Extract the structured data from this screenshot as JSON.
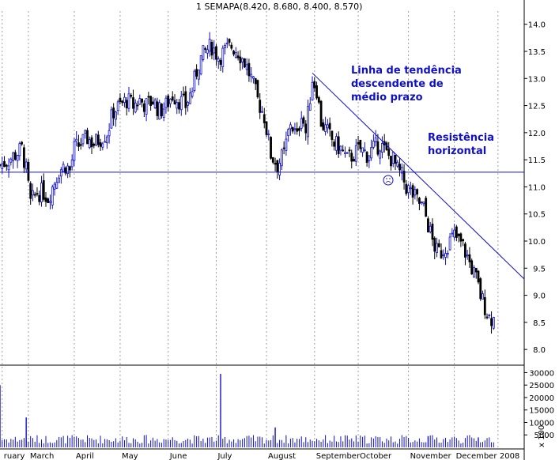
{
  "chart_data": {
    "type": "candlestick",
    "title": "1 SEMAPA(8.420, 8.680, 8.400, 8.570)",
    "price_axis": {
      "ylim": [
        7.9,
        14.2
      ],
      "ticks": [
        "14.0",
        "13.5",
        "13.0",
        "12.5",
        "12.0",
        "11.5",
        "11.0",
        "10.5",
        "10.0",
        "9.5",
        "9.0",
        "8.5",
        "8.0"
      ]
    },
    "volume_axis": {
      "ylim": [
        0,
        33000
      ],
      "ticks": [
        "30000",
        "25000",
        "20000",
        "15000",
        "10000",
        "5000"
      ],
      "multiplier_label": "x 100"
    },
    "x_labels": [
      {
        "label": "ruary",
        "day": -3
      },
      {
        "label": "March",
        "day": 9
      },
      {
        "label": "April",
        "day": 30
      },
      {
        "label": "May",
        "day": 51
      },
      {
        "label": "June",
        "day": 73
      },
      {
        "label": "July",
        "day": 95
      },
      {
        "label": "August",
        "day": 118
      },
      {
        "label": "September",
        "day": 140
      },
      {
        "label": "October",
        "day": 160
      },
      {
        "label": "November",
        "day": 183
      },
      {
        "label": "December",
        "day": 204
      },
      {
        "label": "2008",
        "day": 224
      }
    ],
    "x_range": [
      -4,
      236
    ],
    "gridlines": "vertical dotted at month starts",
    "series": [
      {
        "name": "close",
        "points": [
          [
            -4,
            11.4
          ],
          [
            0,
            11.5
          ],
          [
            3,
            11.6
          ],
          [
            6,
            11.7
          ],
          [
            8,
            11.3
          ],
          [
            10,
            10.7
          ],
          [
            13,
            10.9
          ],
          [
            16,
            10.9
          ],
          [
            18,
            10.8
          ],
          [
            20,
            11.0
          ],
          [
            23,
            11.3
          ],
          [
            26,
            11.4
          ],
          [
            28,
            11.3
          ],
          [
            30,
            11.7
          ],
          [
            33,
            11.8
          ],
          [
            36,
            11.9
          ],
          [
            39,
            11.8
          ],
          [
            42,
            11.9
          ],
          [
            45,
            12.0
          ],
          [
            48,
            12.4
          ],
          [
            51,
            12.5
          ],
          [
            54,
            12.6
          ],
          [
            57,
            12.5
          ],
          [
            60,
            12.6
          ],
          [
            63,
            12.5
          ],
          [
            66,
            12.6
          ],
          [
            69,
            12.4
          ],
          [
            72,
            12.5
          ],
          [
            75,
            12.7
          ],
          [
            78,
            12.6
          ],
          [
            81,
            12.5
          ],
          [
            84,
            12.8
          ],
          [
            87,
            13.3
          ],
          [
            90,
            13.5
          ],
          [
            93,
            13.6
          ],
          [
            96,
            13.4
          ],
          [
            99,
            13.5
          ],
          [
            102,
            13.6
          ],
          [
            105,
            13.5
          ],
          [
            108,
            13.3
          ],
          [
            111,
            13.0
          ],
          [
            114,
            12.6
          ],
          [
            117,
            12.3
          ],
          [
            120,
            11.6
          ],
          [
            123,
            11.4
          ],
          [
            126,
            11.6
          ],
          [
            129,
            12.2
          ],
          [
            132,
            11.9
          ],
          [
            134,
            12.4
          ],
          [
            136,
            12.0
          ],
          [
            139,
            13.0
          ],
          [
            141,
            12.8
          ],
          [
            143,
            12.2
          ],
          [
            146,
            12.0
          ],
          [
            149,
            11.8
          ],
          [
            152,
            11.7
          ],
          [
            155,
            11.5
          ],
          [
            158,
            11.6
          ],
          [
            161,
            11.7
          ],
          [
            164,
            11.6
          ],
          [
            167,
            11.7
          ],
          [
            170,
            11.8
          ],
          [
            173,
            11.6
          ],
          [
            176,
            11.5
          ],
          [
            178,
            11.3
          ],
          [
            180,
            11.2
          ],
          [
            182,
            11.0
          ],
          [
            184,
            10.9
          ],
          [
            186,
            10.8
          ],
          [
            188,
            10.7
          ],
          [
            190,
            10.6
          ],
          [
            192,
            10.3
          ],
          [
            194,
            10.0
          ],
          [
            196,
            9.8
          ],
          [
            198,
            9.8
          ],
          [
            200,
            9.9
          ],
          [
            202,
            10.0
          ],
          [
            204,
            10.1
          ],
          [
            206,
            10.0
          ],
          [
            208,
            9.9
          ],
          [
            210,
            9.7
          ],
          [
            212,
            9.5
          ],
          [
            214,
            9.3
          ],
          [
            216,
            9.0
          ],
          [
            218,
            8.8
          ],
          [
            220,
            8.6
          ],
          [
            222,
            8.57
          ]
        ]
      },
      {
        "name": "volume_spikes",
        "points": [
          [
            -4,
            25000
          ],
          [
            8,
            12000
          ],
          [
            97,
            29500
          ],
          [
            122,
            8000
          ],
          [
            192,
            4500
          ],
          [
            215,
            4000
          ]
        ]
      }
    ],
    "trendline": {
      "style": "descending",
      "from": {
        "day": 139,
        "price": 13.1
      },
      "to": {
        "day": 236,
        "price": 9.3
      }
    },
    "horizontal_line": {
      "price": 11.27
    },
    "annotations": [
      {
        "lines": [
          "Linha de tendência",
          "descendente de",
          "médio prazo"
        ]
      },
      {
        "lines": [
          "Resistência",
          "horizontal"
        ]
      }
    ],
    "colors": {
      "line": "#1010c8",
      "candle_up": "#1010c8",
      "candle_down": "#000000",
      "volume": "#1010c8",
      "grid": "#a0a0a0"
    }
  }
}
